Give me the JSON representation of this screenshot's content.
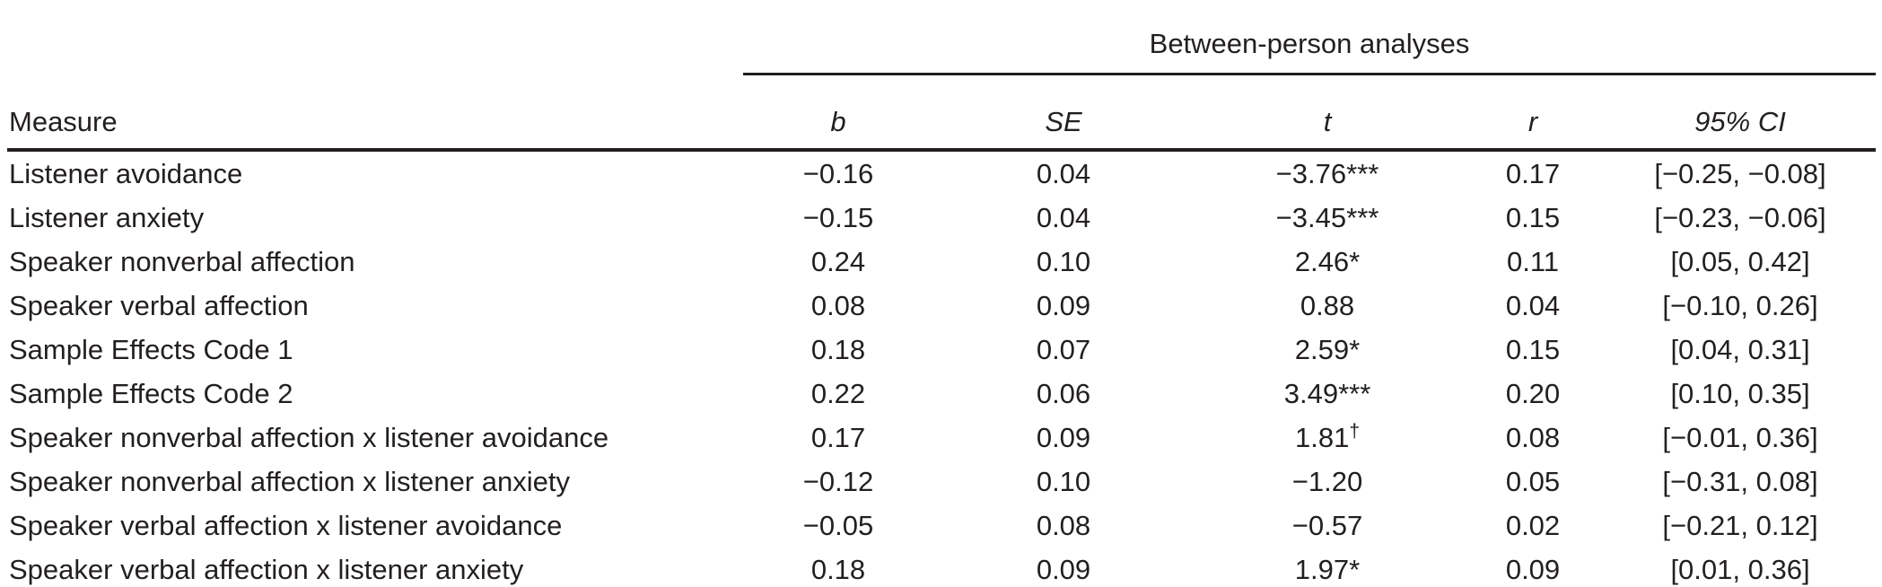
{
  "colors": {
    "text": "#231f20",
    "background": "#ffffff",
    "rule": "#231f20"
  },
  "table": {
    "group_header": "Between-person analyses",
    "columns": {
      "measure": "Measure",
      "b": "b",
      "se": "SE",
      "t": "t",
      "r": "r",
      "ci": "95% CI"
    },
    "rows": [
      {
        "measure": "Listener avoidance",
        "b": "−0.16",
        "se": "0.04",
        "t": "−3.76",
        "t_mark": "***",
        "r": "0.17",
        "ci": "[−0.25, −0.08]"
      },
      {
        "measure": "Listener anxiety",
        "b": "−0.15",
        "se": "0.04",
        "t": "−3.45",
        "t_mark": "***",
        "r": "0.15",
        "ci": "[−0.23, −0.06]"
      },
      {
        "measure": "Speaker nonverbal affection",
        "b": "0.24",
        "se": "0.10",
        "t": "2.46",
        "t_mark": "*",
        "r": "0.11",
        "ci": "[0.05, 0.42]"
      },
      {
        "measure": "Speaker verbal affection",
        "b": "0.08",
        "se": "0.09",
        "t": "0.88",
        "t_mark": "",
        "r": "0.04",
        "ci": "[−0.10, 0.26]"
      },
      {
        "measure": "Sample Effects Code 1",
        "b": "0.18",
        "se": "0.07",
        "t": "2.59",
        "t_mark": "*",
        "r": "0.15",
        "ci": "[0.04, 0.31]"
      },
      {
        "measure": "Sample Effects Code 2",
        "b": "0.22",
        "se": "0.06",
        "t": "3.49",
        "t_mark": "***",
        "r": "0.20",
        "ci": "[0.10, 0.35]"
      },
      {
        "measure": "Speaker nonverbal affection x listener avoidance",
        "b": "0.17",
        "se": "0.09",
        "t": "1.81",
        "t_mark": "†",
        "r": "0.08",
        "ci": "[−0.01, 0.36]"
      },
      {
        "measure": "Speaker nonverbal affection x listener anxiety",
        "b": "−0.12",
        "se": "0.10",
        "t": "−1.20",
        "t_mark": "",
        "r": "0.05",
        "ci": "[−0.31, 0.08]"
      },
      {
        "measure": "Speaker verbal affection x listener avoidance",
        "b": "−0.05",
        "se": "0.08",
        "t": "−0.57",
        "t_mark": "",
        "r": "0.02",
        "ci": "[−0.21, 0.12]"
      },
      {
        "measure": "Speaker verbal affection x listener anxiety",
        "b": "0.18",
        "se": "0.09",
        "t": "1.97",
        "t_mark": "*",
        "r": "0.09",
        "ci": "[0.01, 0.36]"
      }
    ]
  }
}
